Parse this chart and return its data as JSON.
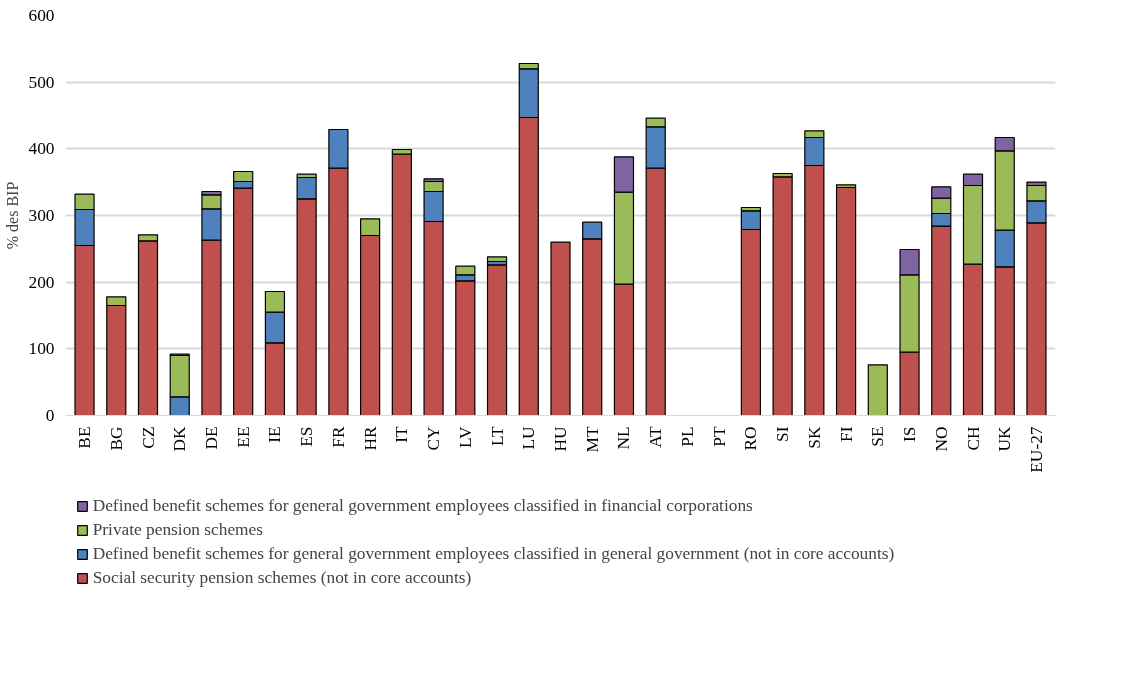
{
  "chart_data": {
    "type": "bar",
    "stacked": true,
    "ylabel": "% des BIP",
    "categories": [
      "BE",
      "BG",
      "CZ",
      "DK",
      "DE",
      "EE",
      "IE",
      "ES",
      "FR",
      "HR",
      "IT",
      "CY",
      "LV",
      "LT",
      "LU",
      "HU",
      "MT",
      "NL",
      "AT",
      "PL",
      "PT",
      "RO",
      "SI",
      "SK",
      "FI",
      "SE",
      "IS",
      "NO",
      "CH",
      "UK",
      "EU-27"
    ],
    "series": [
      {
        "name": "Social security pension schemes (not in core accounts)",
        "color": "#c0504d",
        "values": [
          255,
          165,
          262,
          null,
          263,
          341,
          109,
          325,
          371,
          270,
          392,
          291,
          202,
          226,
          447,
          260,
          265,
          197,
          371,
          null,
          null,
          279,
          358,
          375,
          342,
          null,
          95,
          284,
          227,
          223,
          289
        ]
      },
      {
        "name": "Defined benefit schemes for general government employees classified in general government (not in core accounts)",
        "color": "#4f81bd",
        "values": [
          54,
          null,
          null,
          28,
          47,
          10,
          46,
          32,
          58,
          null,
          null,
          45,
          9,
          5,
          73,
          null,
          25,
          null,
          62,
          null,
          null,
          28,
          null,
          42,
          null,
          null,
          null,
          19,
          null,
          55,
          33
        ]
      },
      {
        "name": "Private pension schemes",
        "color": "#9bbb59",
        "values": [
          23,
          13,
          9,
          62,
          21,
          15,
          31,
          5,
          null,
          25,
          7,
          15,
          13,
          7,
          8,
          null,
          null,
          138,
          13,
          null,
          null,
          5,
          5,
          10,
          4,
          76,
          116,
          23,
          118,
          119,
          23
        ]
      },
      {
        "name": "Defined benefit schemes for general government employees classified in financial corporations",
        "color": "#8064a2",
        "values": [
          null,
          null,
          null,
          2,
          5,
          null,
          null,
          null,
          null,
          null,
          null,
          4,
          null,
          null,
          null,
          null,
          null,
          53,
          null,
          null,
          null,
          null,
          null,
          null,
          null,
          null,
          38,
          17,
          17,
          20,
          5
        ]
      }
    ],
    "ylim": [
      0,
      600
    ],
    "yticks": [
      0,
      100,
      200,
      300,
      400,
      500,
      600
    ],
    "grid": "y",
    "legend": "bottom"
  }
}
